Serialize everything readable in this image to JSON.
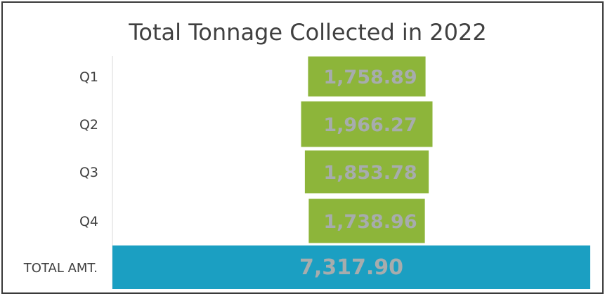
{
  "chart_data": {
    "type": "bar",
    "orientation": "horizontal",
    "title": "Total Tonnage Collected in 2022",
    "xlabel": "",
    "ylabel": "",
    "categories": [
      "Q1",
      "Q2",
      "Q3",
      "Q4",
      "TOTAL AMT."
    ],
    "values": [
      1758.89,
      1966.27,
      1853.78,
      1738.96,
      7317.9
    ],
    "value_labels": [
      "1,758.89",
      "1,966.27",
      "1,853.78",
      "1,738.96",
      "7,317.90"
    ],
    "bar_colors": [
      "#8db53a",
      "#8db53a",
      "#8db53a",
      "#8db53a",
      "#1b9fc2"
    ],
    "label_color": "#a7acad",
    "bar_alignment": "centered",
    "legend": "none",
    "grid": false
  }
}
